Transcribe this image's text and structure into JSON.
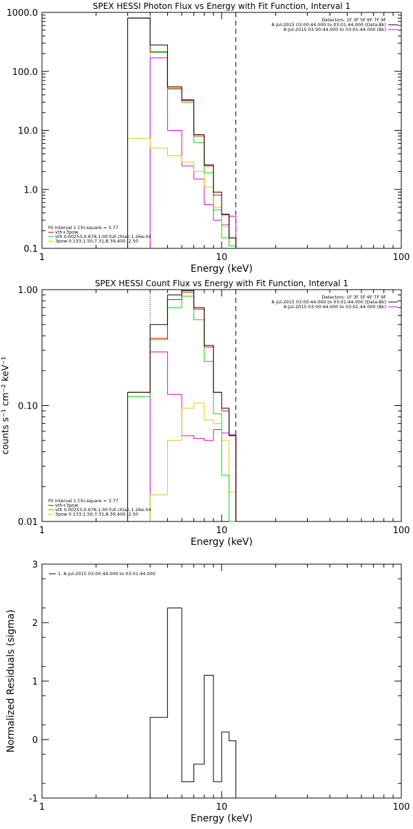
{
  "colors": {
    "background": "#ffffff",
    "axes": "#000000",
    "total": "#000000",
    "vth_plus_3pow": "#ee0000",
    "vth": "#00dd00",
    "pow": "#ddcc00",
    "background_model": "#dd00dd"
  },
  "chart_data": [
    {
      "type": "line",
      "title": "SPEX HESSI Photon Flux vs Energy with Fit Function, Interval 1",
      "xlabel": "Energy (keV)",
      "ylabel": "",
      "xscale": "log",
      "yscale": "log",
      "xlim": [
        1,
        100
      ],
      "ylim": [
        0.1,
        1000
      ],
      "xticks": [
        {
          "value": 1,
          "label": "1"
        },
        {
          "value": 10,
          "label": "10"
        },
        {
          "value": 100,
          "label": "100"
        }
      ],
      "yticks": [
        {
          "value": 0.1,
          "label": "0.1"
        },
        {
          "value": 1,
          "label": "1.0"
        },
        {
          "value": 10,
          "label": "10.0"
        },
        {
          "value": 100,
          "label": "100.0"
        },
        {
          "value": 1000,
          "label": "1000.0"
        }
      ],
      "vlines": [
        {
          "x": 4.0,
          "style": "dotted"
        },
        {
          "x": 12.0,
          "style": "dashed"
        }
      ],
      "legend_right": [
        "Detectors: 1F 3F 5F 6F 7F 9F",
        "8-Jul-2015 03:00:44.000 to 03:01:44.000 (Data-Bk)",
        "8-Jul-2015 03:00:44.000 to 03:01:44.000 (Bk)"
      ],
      "legend_left": [
        "Fit Interval 1   Chi-square = 3.77",
        "vth+3pow",
        "vth 0.00253,0.678,1.00  full chian 1.26e-04",
        "3pow 0.133,1.50,7.31,8.39,400.,2.50"
      ],
      "bin_edges": [
        3.0,
        4.0,
        5.0,
        6.0,
        7.0,
        8.0,
        9.0,
        10.0,
        11.0,
        12.0
      ],
      "series": [
        {
          "key": "total",
          "values": [
            800,
            280,
            55,
            33,
            8.5,
            2.6,
            0.9,
            0.38,
            0.15
          ]
        },
        {
          "key": "vth_plus_3pow",
          "values": [
            800,
            215,
            52,
            32,
            8.0,
            2.5,
            0.8,
            0.37,
            0.15
          ]
        },
        {
          "key": "vth",
          "values": [
            800,
            210,
            50,
            30,
            6.2,
            1.9,
            0.45,
            0.15,
            0.11
          ]
        },
        {
          "key": "pow",
          "values": [
            7.3,
            5.0,
            3.7,
            2.9,
            2.0,
            1.1,
            0.5,
            0.23,
            0.11
          ]
        },
        {
          "key": "background_model",
          "values": [
            null,
            170,
            10,
            2.5,
            1.5,
            0.55,
            0.3,
            0.25,
            0.35
          ]
        }
      ]
    },
    {
      "type": "line",
      "title": "SPEX HESSI Count Flux vs Energy with Fit Function, Interval 1",
      "xlabel": "Energy (keV)",
      "ylabel": "counts s⁻¹ cm⁻² keV⁻¹",
      "xscale": "log",
      "yscale": "log",
      "xlim": [
        1,
        100
      ],
      "ylim": [
        0.01,
        1.0
      ],
      "xticks": [
        {
          "value": 1,
          "label": "1"
        },
        {
          "value": 10,
          "label": "10"
        },
        {
          "value": 100,
          "label": "100"
        }
      ],
      "yticks": [
        {
          "value": 0.01,
          "label": "0.01"
        },
        {
          "value": 0.1,
          "label": "0.10"
        },
        {
          "value": 1,
          "label": "1.00"
        }
      ],
      "vlines": [
        {
          "x": 4.0,
          "style": "dotted"
        },
        {
          "x": 12.0,
          "style": "dashed"
        }
      ],
      "legend_right": [
        "Detectors: 1F 3F 5F 6F 7F 9F",
        "8-Jul-2015 03:00:44.000 to 03:01:44.000 (Data-Bk)",
        "8-Jul-2015 03:00:44.000 to 03:01:44.000 (Bk)"
      ],
      "legend_left": [
        "Fit Interval 1   Chi-square = 3.77",
        "vth+3pow",
        "vth 0.00253,0.678,1.00  full chian 1.26e-04",
        "3pow 0.133,1.50,7.31,8.39,400.,2.50"
      ],
      "bin_edges": [
        3.0,
        4.0,
        5.0,
        6.0,
        7.0,
        8.0,
        9.0,
        10.0,
        11.0,
        12.0
      ],
      "series": [
        {
          "key": "total",
          "values": [
            0.13,
            0.5,
            0.9,
            0.98,
            0.7,
            0.33,
            0.13,
            0.095,
            0.055
          ]
        },
        {
          "key": "vth_plus_3pow",
          "values": [
            0.13,
            0.38,
            0.82,
            0.95,
            0.68,
            0.32,
            0.13,
            0.09,
            0.055
          ]
        },
        {
          "key": "vth",
          "values": [
            0.12,
            0.37,
            0.7,
            0.88,
            0.55,
            0.24,
            0.085,
            0.025,
            0.01
          ]
        },
        {
          "key": "pow",
          "values": [
            null,
            0.017,
            0.05,
            0.095,
            0.105,
            0.075,
            0.07,
            0.05,
            0.018
          ]
        },
        {
          "key": "background_model",
          "values": [
            null,
            0.29,
            0.125,
            0.055,
            0.052,
            0.05,
            0.062,
            0.058,
            0.056
          ]
        }
      ]
    },
    {
      "type": "line",
      "title": "",
      "xlabel": "Energy (keV)",
      "ylabel": "Normalized Residuals (sigma)",
      "xscale": "log",
      "yscale": "linear",
      "xlim": [
        1,
        100
      ],
      "ylim": [
        -1,
        3
      ],
      "xticks": [
        {
          "value": 1,
          "label": "1"
        },
        {
          "value": 10,
          "label": "10"
        },
        {
          "value": 100,
          "label": "100"
        }
      ],
      "yticks": [
        {
          "value": -1,
          "label": "-1"
        },
        {
          "value": 0,
          "label": "0"
        },
        {
          "value": 1,
          "label": "1"
        },
        {
          "value": 2,
          "label": "2"
        },
        {
          "value": 3,
          "label": "3"
        }
      ],
      "legend_left": [
        "1.  8-Jul-2015 03:00:44.000 to 03:01:44.000"
      ],
      "bin_edges": [
        4.0,
        5.0,
        6.0,
        7.0,
        8.0,
        9.0,
        10.0,
        11.0,
        12.0
      ],
      "series": [
        {
          "key": "total",
          "values": [
            0.38,
            2.25,
            -0.72,
            -0.42,
            1.1,
            -0.72,
            0.13,
            -0.02
          ]
        }
      ]
    }
  ]
}
